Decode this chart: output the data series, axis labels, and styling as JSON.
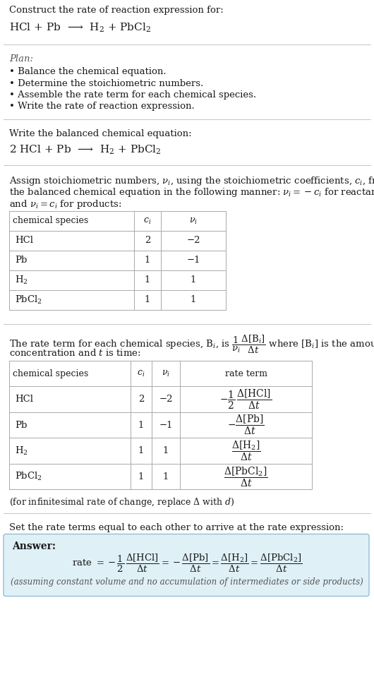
{
  "bg_color": "#ffffff",
  "text_color": "#1a1a1a",
  "gray_text": "#555555",
  "section_line_color": "#bbbbbb",
  "answer_box_bg": "#dff0f7",
  "answer_box_border": "#90c0d8",
  "title_text": "Construct the rate of reaction expression for:",
  "reaction_unbalanced": "HCl + Pb  ⟶  H$_2$ + PbCl$_2$",
  "plan_title": "Plan:",
  "plan_items": [
    "• Balance the chemical equation.",
    "• Determine the stoichiometric numbers.",
    "• Assemble the rate term for each chemical species.",
    "• Write the rate of reaction expression."
  ],
  "balanced_label": "Write the balanced chemical equation:",
  "balanced_eq": "2 HCl + Pb  ⟶  H$_2$ + PbCl$_2$",
  "stoich_intro1": "Assign stoichiometric numbers, $\\nu_i$, using the stoichiometric coefficients, $c_i$, from",
  "stoich_intro2": "the balanced chemical equation in the following manner: $\\nu_i = -c_i$ for reactants",
  "stoich_intro3": "and $\\nu_i = c_i$ for products:",
  "table1_headers": [
    "chemical species",
    "$c_i$",
    "$\\nu_i$"
  ],
  "table1_rows": [
    [
      "HCl",
      "2",
      "−2"
    ],
    [
      "Pb",
      "1",
      "−1"
    ],
    [
      "H$_2$",
      "1",
      "1"
    ],
    [
      "PbCl$_2$",
      "1",
      "1"
    ]
  ],
  "rate_intro1": "The rate term for each chemical species, B$_i$, is $\\dfrac{1}{\\nu_i}\\dfrac{\\Delta[\\mathrm{B}_i]}{\\Delta t}$ where [B$_i$] is the amount",
  "rate_intro2": "concentration and $t$ is time:",
  "table2_headers": [
    "chemical species",
    "$c_i$",
    "$\\nu_i$",
    "rate term"
  ],
  "table2_rows": [
    [
      "HCl",
      "2",
      "−2",
      "$-\\dfrac{1}{2}\\,\\dfrac{\\Delta[\\mathrm{HCl}]}{\\Delta t}$"
    ],
    [
      "Pb",
      "1",
      "−1",
      "$-\\dfrac{\\Delta[\\mathrm{Pb}]}{\\Delta t}$"
    ],
    [
      "H$_2$",
      "1",
      "1",
      "$\\dfrac{\\Delta[\\mathrm{H_2}]}{\\Delta t}$"
    ],
    [
      "PbCl$_2$",
      "1",
      "1",
      "$\\dfrac{\\Delta[\\mathrm{PbCl_2}]}{\\Delta t}$"
    ]
  ],
  "infinitesimal_note": "(for infinitesimal rate of change, replace Δ with $d$)",
  "set_equal_text": "Set the rate terms equal to each other to arrive at the rate expression:",
  "answer_label": "Answer:",
  "answer_note": "(assuming constant volume and no accumulation of intermediates or side products)"
}
